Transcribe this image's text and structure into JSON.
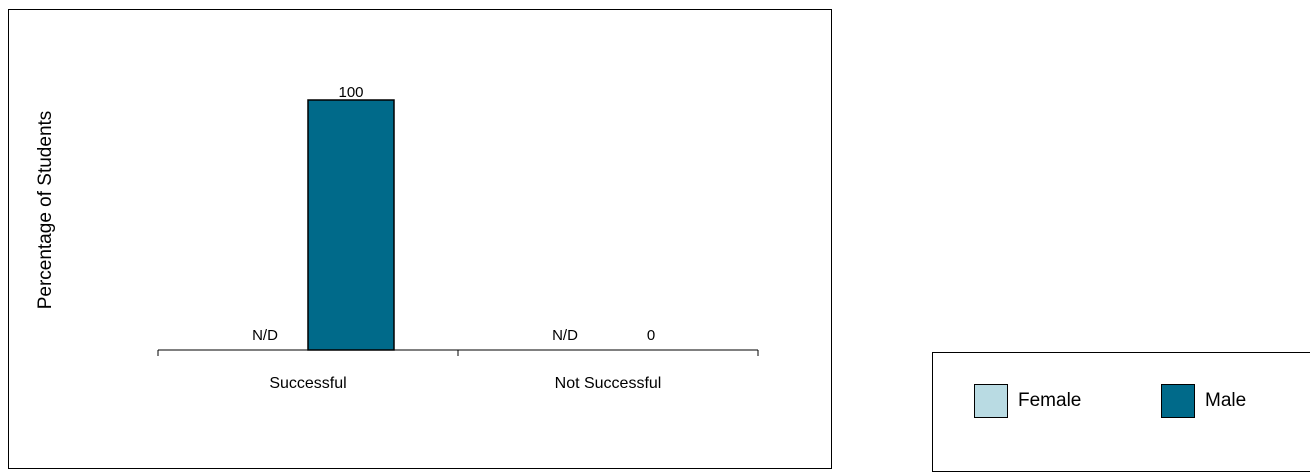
{
  "chart_data": {
    "type": "bar",
    "ylabel": "Percentage of Students",
    "categories": [
      "Successful",
      "Not Successful"
    ],
    "ylim": [
      0,
      110
    ],
    "series": [
      {
        "name": "Female",
        "color": "#b9dbe3",
        "values": [
          null,
          null
        ],
        "labels": [
          "N/D",
          "N/D"
        ]
      },
      {
        "name": "Male",
        "color": "#006a8a",
        "values": [
          100,
          0
        ],
        "labels": [
          "100",
          "0"
        ]
      }
    ],
    "grid": false,
    "legend": "bottom-right"
  },
  "legend": {
    "items": [
      {
        "label": "Female",
        "color": "#b9dbe3"
      },
      {
        "label": "Male",
        "color": "#006a8a"
      }
    ]
  }
}
